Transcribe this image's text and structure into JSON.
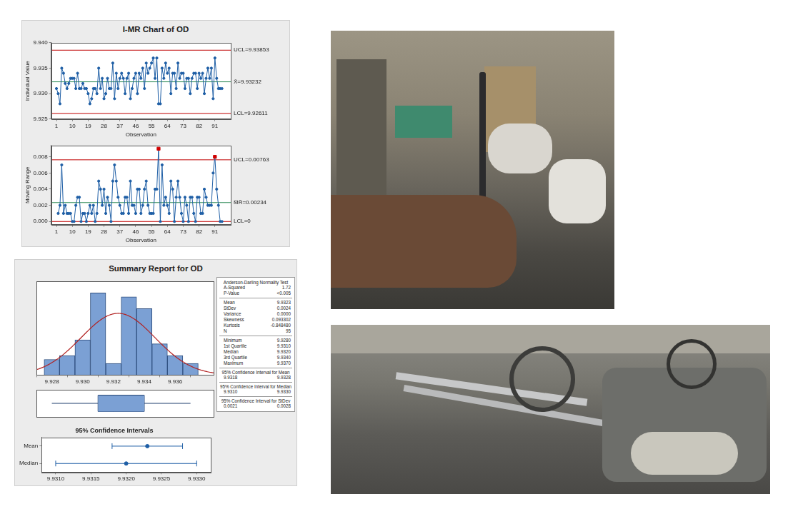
{
  "panels": [
    {
      "title": "I-MR Chart of OD"
    },
    {
      "title": "Summary Report for OD",
      "table": [
        {
          "heading": "Anderson-Darling Normality Test",
          "rows": [
            [
              "A-Squared",
              "1.72"
            ],
            [
              "P-Value",
              "<0.005"
            ]
          ]
        },
        {
          "rows": [
            [
              "Mean",
              "9.9323"
            ],
            [
              "StDev",
              "0.0024"
            ],
            [
              "Variance",
              "0.0000"
            ],
            [
              "Skewness",
              "0.093302"
            ],
            [
              "Kurtosis",
              "-0.848480"
            ],
            [
              "N",
              "95"
            ]
          ]
        },
        {
          "rows": [
            [
              "Minimum",
              "9.9280"
            ],
            [
              "1st Quartile",
              "9.9310"
            ],
            [
              "Median",
              "9.9320"
            ],
            [
              "3rd Quartile",
              "9.9340"
            ],
            [
              "Maximum",
              "9.9370"
            ]
          ]
        },
        {
          "heading": "95% Confidence Interval for Mean",
          "rows": [
            [
              "9.9318",
              "9.9328"
            ]
          ]
        },
        {
          "heading": "95% Confidence Interval for Median",
          "rows": [
            [
              "9.9310",
              "9.9330"
            ]
          ]
        },
        {
          "heading": "95% Confidence Interval for StDev",
          "rows": [
            [
              "0.0021",
              "0.0028"
            ]
          ]
        }
      ]
    }
  ],
  "chart_data": [
    {
      "type": "line",
      "x_label": "Observation",
      "y_label": "Individual Value",
      "x": [
        1,
        2,
        3,
        4,
        5,
        6,
        7,
        8,
        9,
        10,
        11,
        12,
        13,
        14,
        15,
        16,
        17,
        18,
        19,
        20,
        21,
        22,
        23,
        24,
        25,
        26,
        27,
        28,
        29,
        30,
        31,
        32,
        33,
        34,
        35,
        36,
        37,
        38,
        39,
        40,
        41,
        42,
        43,
        44,
        45,
        46,
        47,
        48,
        49,
        50,
        51,
        52,
        53,
        54,
        55,
        56,
        57,
        58,
        59,
        60,
        61,
        62,
        63,
        64,
        65,
        66,
        67,
        68,
        69,
        70,
        71,
        72,
        73,
        74,
        75,
        76,
        77,
        78,
        79,
        80,
        81,
        82,
        83,
        84,
        85,
        86,
        87,
        88,
        89,
        90,
        91,
        92,
        93,
        94,
        95
      ],
      "values": [
        9.931,
        9.93,
        9.928,
        9.935,
        9.934,
        9.932,
        9.931,
        9.932,
        9.933,
        9.933,
        9.933,
        9.931,
        9.934,
        9.931,
        9.931,
        9.932,
        9.931,
        9.931,
        9.93,
        9.928,
        9.929,
        9.931,
        9.931,
        9.93,
        9.935,
        9.931,
        9.933,
        9.929,
        9.93,
        9.933,
        9.931,
        9.931,
        9.936,
        9.929,
        9.934,
        9.931,
        9.933,
        9.934,
        9.933,
        9.93,
        9.933,
        9.934,
        9.929,
        9.931,
        9.933,
        9.934,
        9.93,
        9.934,
        9.933,
        9.935,
        9.931,
        9.936,
        9.934,
        9.935,
        9.936,
        9.937,
        9.933,
        9.937,
        9.928,
        9.928,
        9.935,
        9.933,
        9.936,
        9.934,
        9.935,
        9.93,
        9.934,
        9.934,
        9.931,
        9.936,
        9.933,
        9.934,
        9.934,
        9.931,
        9.933,
        9.933,
        9.93,
        9.933,
        9.934,
        9.934,
        9.931,
        9.934,
        9.933,
        9.934,
        9.93,
        9.933,
        9.935,
        9.933,
        9.935,
        9.929,
        9.937,
        9.933,
        9.931,
        9.931,
        9.931
      ],
      "color": "#1f5fa6",
      "marker": "circle",
      "grid": false,
      "xlim": [
        -2,
        100
      ],
      "xticks": [
        1,
        10,
        19,
        28,
        37,
        46,
        55,
        64,
        73,
        82,
        91
      ],
      "ylim": [
        9.925,
        9.94
      ],
      "yticks": [
        9.925,
        {
          "value": 9.93,
          "label": "9.930"
        },
        9.935,
        {
          "value": 9.94,
          "label": "9.940"
        }
      ],
      "control_limits": [
        {
          "value": 9.93853,
          "label": "UCL=9.93853",
          "color": "#c00000"
        },
        {
          "value": 9.93232,
          "label": "X̄=9.93232",
          "color": "#2e8b57"
        },
        {
          "value": 9.92611,
          "label": "LCL=9.92611",
          "color": "#c00000"
        }
      ]
    },
    {
      "type": "line",
      "x_label": "Observation",
      "y_label": "Moving Range",
      "x": [
        1,
        2,
        3,
        4,
        5,
        6,
        7,
        8,
        9,
        10,
        11,
        12,
        13,
        14,
        15,
        16,
        17,
        18,
        19,
        20,
        21,
        22,
        23,
        24,
        25,
        26,
        27,
        28,
        29,
        30,
        31,
        32,
        33,
        34,
        35,
        36,
        37,
        38,
        39,
        40,
        41,
        42,
        43,
        44,
        45,
        46,
        47,
        48,
        49,
        50,
        51,
        52,
        53,
        54,
        55,
        56,
        57,
        58,
        59,
        60,
        61,
        62,
        63,
        64,
        65,
        66,
        67,
        68,
        69,
        70,
        71,
        72,
        73,
        74,
        75,
        76,
        77,
        78,
        79,
        80,
        81,
        82,
        83,
        84,
        85,
        86,
        87,
        88,
        89,
        90,
        91,
        92,
        93,
        94,
        95
      ],
      "values": [
        null,
        0.001,
        0.002,
        0.007,
        0.001,
        0.002,
        0.001,
        0.001,
        0.001,
        0,
        0,
        0.002,
        0.003,
        0.003,
        0,
        0.001,
        0.001,
        0,
        0.001,
        0.002,
        0.001,
        0.002,
        0,
        0.001,
        0.005,
        0.004,
        0.002,
        0.004,
        0.001,
        0.003,
        0.002,
        0,
        0.005,
        0.007,
        0.005,
        0.003,
        0.002,
        0.001,
        0.001,
        0.003,
        0.003,
        0.001,
        0.005,
        0.002,
        0.002,
        0.001,
        0.004,
        0.004,
        0.001,
        0.002,
        0.004,
        0.005,
        0.002,
        0.001,
        0.001,
        0.001,
        0.004,
        0.004,
        0.009,
        0,
        0.007,
        0.002,
        0.003,
        0.002,
        0.001,
        0.005,
        0.004,
        0,
        0.003,
        0.005,
        0.003,
        0.001,
        0,
        0.003,
        0.002,
        0,
        0.003,
        0.003,
        0.001,
        0,
        0.003,
        0.003,
        0.001,
        0.001,
        0.004,
        0.003,
        0.002,
        0.002,
        0.002,
        0.006,
        0.008,
        0.004,
        0.002,
        0,
        0
      ],
      "color": "#1f5fa6",
      "marker": "circle",
      "grid": false,
      "xlim": [
        -2,
        100
      ],
      "xticks": [
        1,
        10,
        19,
        28,
        37,
        46,
        55,
        64,
        73,
        82,
        91
      ],
      "ylim": [
        -0.0004,
        0.0094
      ],
      "yticks": [
        {
          "value": 0,
          "label": "0.000"
        },
        0.002,
        0.004,
        0.006,
        0.008
      ],
      "control_limits": [
        {
          "value": 0.00763,
          "label": "UCL=0.00763",
          "color": "#c00000"
        },
        {
          "value": 0.00234,
          "label": "M̄R̄=0.00234",
          "color": "#2e8b57"
        },
        {
          "value": 0,
          "label": "LCL=0",
          "color": "#c00000"
        }
      ]
    },
    {
      "type": "histogram",
      "bins": [
        9.9275,
        9.9285,
        9.9295,
        9.9305,
        9.9315,
        9.9325,
        9.9335,
        9.9345,
        9.9355,
        9.9365,
        9.9375
      ],
      "counts": [
        4,
        5,
        9,
        21,
        3,
        20,
        17,
        8,
        5,
        3
      ],
      "color": "#7ba0d4",
      "grid": false,
      "tick_labels": "x",
      "fit": {
        "type": "line",
        "color": "#b22222",
        "mean": 9.9323,
        "stdev": 0.0024
      },
      "xlim": [
        9.927,
        9.9385
      ],
      "xticks": [
        9.928,
        {
          "value": 9.93,
          "label": "9.930"
        },
        9.932,
        9.934,
        9.936
      ],
      "ylim": [
        0,
        24
      ]
    },
    {
      "type": "boxplot",
      "box": {
        "min": 9.928,
        "q1": 9.931,
        "median": 9.932,
        "q3": 9.934,
        "max": 9.937
      },
      "color": "#7ba0d4",
      "grid": false,
      "tick_labels": false,
      "xlim": [
        9.927,
        9.9385
      ]
    },
    {
      "type": "interval",
      "title": "95% Confidence Intervals",
      "orientation": "horizontal",
      "categories": [
        "Mean",
        "Median"
      ],
      "values": [
        9.9323,
        9.932
      ],
      "lower": [
        9.9318,
        9.931
      ],
      "upper": [
        9.9328,
        9.933
      ],
      "color": "#1f5fa6",
      "marker": "circle",
      "grid": false,
      "xlim": [
        9.9308,
        9.9332
      ],
      "xticks": [
        {
          "value": 9.931,
          "label": "9.9310"
        },
        9.9315,
        {
          "value": 9.932,
          "label": "9.9320"
        },
        9.9325,
        {
          "value": 9.933,
          "label": "9.9330"
        }
      ]
    }
  ]
}
